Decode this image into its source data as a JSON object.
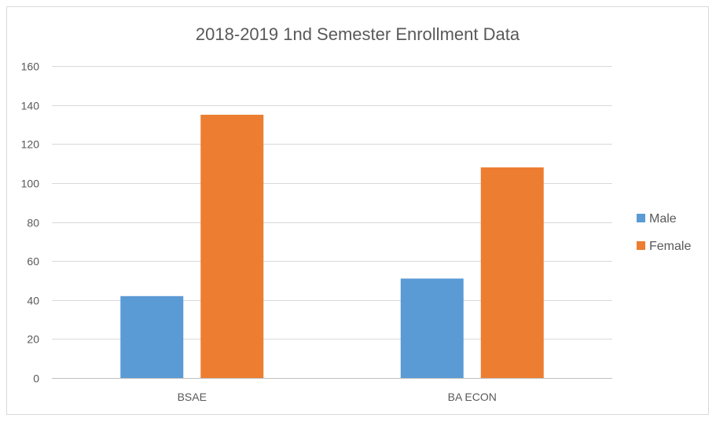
{
  "chart_data": {
    "type": "bar",
    "title": "2018-2019 1nd Semester Enrollment Data",
    "categories": [
      "BSAE",
      "BA ECON"
    ],
    "series": [
      {
        "name": "Male",
        "values": [
          42,
          51
        ],
        "color": "#5b9bd5"
      },
      {
        "name": "Female",
        "values": [
          135,
          108
        ],
        "color": "#ed7d31"
      }
    ],
    "ylim": [
      0,
      160
    ],
    "yticks": [
      0,
      20,
      40,
      60,
      80,
      100,
      120,
      140,
      160
    ],
    "grid": true,
    "legend_position": "right"
  }
}
